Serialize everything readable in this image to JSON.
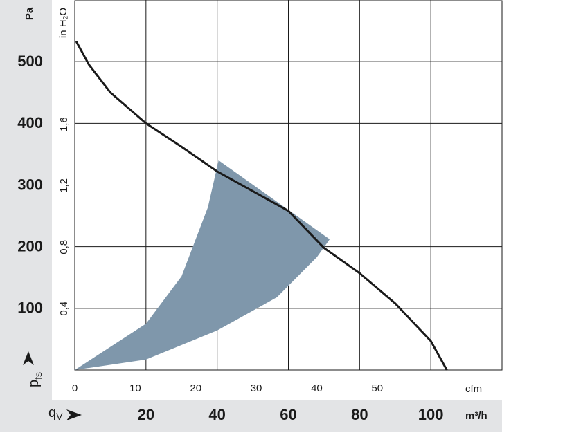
{
  "chart_data": {
    "type": "line",
    "y_label": {
      "main": "p",
      "sub": "fs"
    },
    "y_unit": "Pa",
    "y2_unit": "in H₂O",
    "x_label": {
      "main": "q",
      "sub": "V"
    },
    "x_unit": "m³/h",
    "x2_unit": "cfm",
    "xlim": [
      0,
      120
    ],
    "xticks": [
      20,
      40,
      60,
      80,
      100
    ],
    "x2lim": [
      0,
      70.63
    ],
    "x2ticks": [
      0,
      10,
      20,
      30,
      40,
      50
    ],
    "ylim": [
      0,
      600
    ],
    "yticks": [
      100,
      200,
      300,
      400,
      500
    ],
    "y2lim": [
      0,
      2.409
    ],
    "y2ticks": [
      {
        "value": 0.4,
        "label": "0,4"
      },
      {
        "value": 0.8,
        "label": "0,8"
      },
      {
        "value": 1.2,
        "label": "1,2"
      },
      {
        "value": 1.6,
        "label": "1,6"
      }
    ],
    "grid": true,
    "series": [
      {
        "type": "line",
        "color": "#1a1a1a",
        "x": [
          0.4,
          4,
          10,
          20,
          30,
          40,
          50,
          60,
          70,
          80,
          90,
          100,
          104.5
        ],
        "y": [
          533,
          495,
          450,
          400,
          362,
          322,
          290,
          258,
          198,
          157,
          108,
          47,
          0
        ]
      },
      {
        "type": "area",
        "color": "#7f97ab",
        "x": [
          0,
          20,
          30,
          37.4,
          40.4,
          71.6,
          68,
          56.8,
          40,
          20,
          0
        ],
        "y": [
          0,
          75,
          152,
          264,
          340,
          212,
          183,
          118,
          64,
          17,
          0
        ]
      }
    ]
  }
}
